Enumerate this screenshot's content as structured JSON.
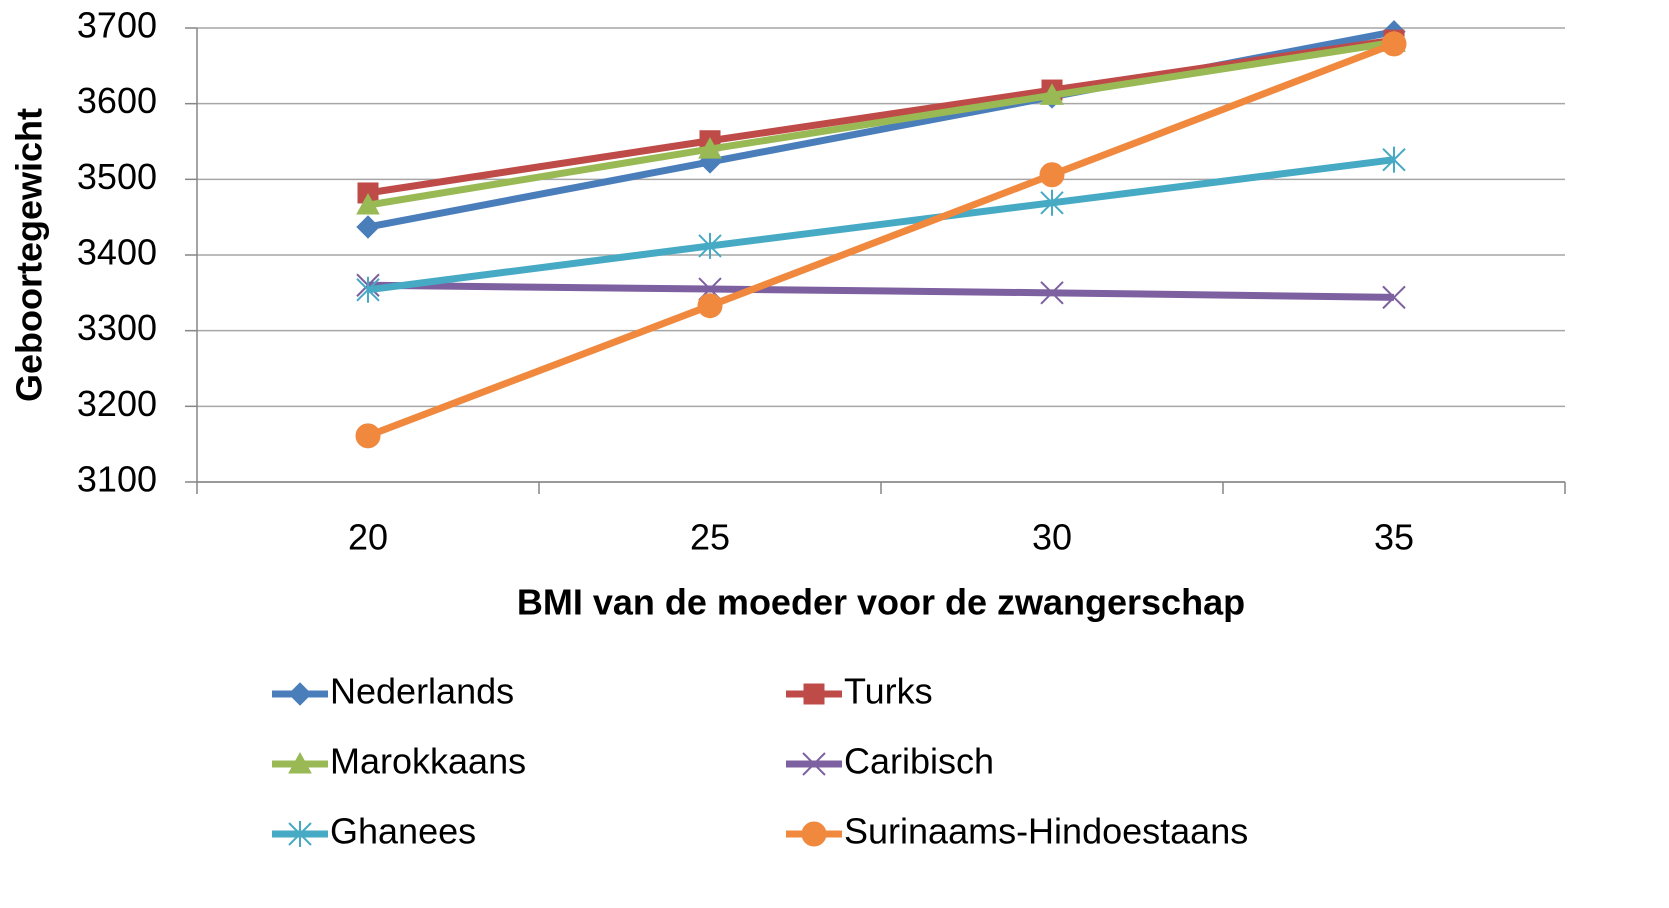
{
  "chart_data": {
    "type": "line",
    "x_label": "BMI van de moeder voor de zwangerschap",
    "y_label": "Geboortegewicht",
    "categories": [
      "20",
      "25",
      "30",
      "35"
    ],
    "ylim": [
      3100,
      3700
    ],
    "yticks": [
      3100,
      3200,
      3300,
      3400,
      3500,
      3600,
      3700
    ],
    "grid": true,
    "legend": "bottom",
    "series": [
      {
        "name": "Nederlands",
        "color": "#4a7ebb",
        "marker": "diamond",
        "values": [
          3437,
          3523,
          3609,
          3695
        ]
      },
      {
        "name": "Turks",
        "color": "#be4b48",
        "marker": "square",
        "values": [
          3482,
          3551,
          3618,
          3684
        ]
      },
      {
        "name": "Marokkaans",
        "color": "#98b954",
        "marker": "triangle",
        "values": [
          3466,
          3540,
          3611,
          3681
        ]
      },
      {
        "name": "Caribisch",
        "color": "#7d60a0",
        "marker": "x",
        "values": [
          3360,
          3355,
          3350,
          3344
        ]
      },
      {
        "name": "Ghanees",
        "color": "#46aac5",
        "marker": "asterisk",
        "values": [
          3354,
          3412,
          3469,
          3526
        ]
      },
      {
        "name": "Surinaams-Hindoestaans",
        "color": "#f0883e",
        "marker": "circle",
        "values": [
          3161,
          3333,
          3506,
          3679
        ]
      }
    ]
  }
}
